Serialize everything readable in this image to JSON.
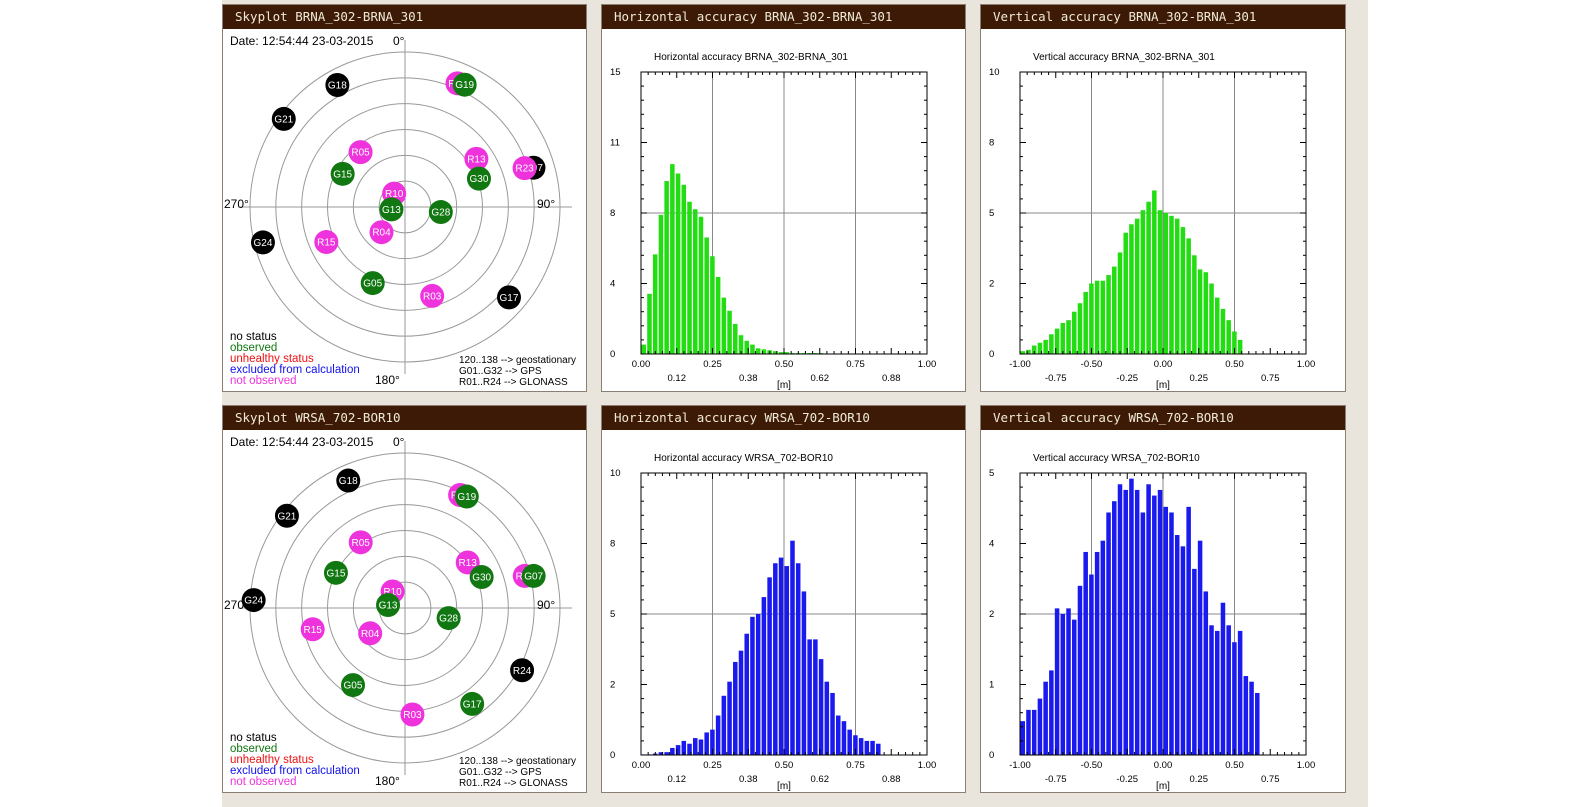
{
  "panels": [
    {
      "type": "skyplot",
      "title": "Skyplot BRNA_302-BRNA_301",
      "date_label": "Date: 12:54:44 23-03-2015",
      "compass": {
        "n": "0°",
        "e": "90°",
        "s": "180°",
        "w": "270°"
      },
      "satellites": [
        {
          "id": "G18",
          "status": "no status",
          "az": 331,
          "el": 9
        },
        {
          "id": "G21",
          "status": "no status",
          "az": 306,
          "el": 3
        },
        {
          "id": "G24",
          "status": "no status",
          "az": 256,
          "el": 5
        },
        {
          "id": "G07",
          "status": "no status",
          "az": 73,
          "el": 12
        },
        {
          "id": "G17",
          "status": "no status",
          "az": 131,
          "el": 10
        },
        {
          "id": "R20",
          "status": "not observed",
          "az": 23,
          "el": 12
        },
        {
          "id": "G19",
          "status": "observed",
          "az": 26,
          "el": 11
        },
        {
          "id": "R05",
          "status": "not observed",
          "az": 321,
          "el": 49
        },
        {
          "id": "R13",
          "status": "not observed",
          "az": 56,
          "el": 40
        },
        {
          "id": "G15",
          "status": "observed",
          "az": 298,
          "el": 49
        },
        {
          "id": "G30",
          "status": "observed",
          "az": 69,
          "el": 44
        },
        {
          "id": "R23",
          "status": "not observed",
          "az": 72,
          "el": 17
        },
        {
          "id": "R10",
          "status": "not observed",
          "az": 321,
          "el": 80
        },
        {
          "id": "G13",
          "status": "observed",
          "az": 260,
          "el": 82
        },
        {
          "id": "G28",
          "status": "observed",
          "az": 98,
          "el": 69
        },
        {
          "id": "R15",
          "status": "not observed",
          "az": 246,
          "el": 40
        },
        {
          "id": "R04",
          "status": "not observed",
          "az": 223,
          "el": 70
        },
        {
          "id": "G05",
          "status": "observed",
          "az": 203,
          "el": 42
        },
        {
          "id": "R03",
          "status": "not observed",
          "az": 163,
          "el": 36
        }
      ],
      "legend": [
        "no status",
        "observed",
        "unhealthy status",
        "excluded from calculation",
        "not observed"
      ],
      "info": [
        "120..138 --> geostationary",
        "G01..G32 --> GPS",
        "R01..R24 --> GLONASS"
      ]
    },
    {
      "type": "histogram",
      "title": "Horizontal accuracy BRNA_302-BRNA_301",
      "chart_data": {
        "type": "bar",
        "title": "Horizontal accuracy BRNA_302-BRNA_301",
        "xlabel": "[m]",
        "ylabel": "",
        "xlim": [
          0,
          1
        ],
        "ylim": [
          0,
          15
        ],
        "x_bottom_ticks": [
          "0.00",
          "0.12",
          "0.25",
          "0.38",
          "0.50",
          "0.62",
          "0.75",
          "0.88",
          "1.00"
        ],
        "y_ticks": [
          "0",
          "4",
          "8",
          "11",
          "15"
        ],
        "grid": true,
        "color": "#22dd11",
        "bin_width": 0.02,
        "values": [
          0.5,
          3.2,
          5.3,
          7.4,
          9.2,
          10.1,
          9.6,
          9.0,
          8.1,
          7.7,
          7.3,
          6.2,
          5.2,
          4.1,
          3.0,
          2.3,
          1.6,
          1.0,
          0.7,
          0.5,
          0.3,
          0.25,
          0.2,
          0.15,
          0.1,
          0.1,
          0.05,
          0.05,
          0.05,
          0.05,
          0.05,
          0.05,
          0.02,
          0.02,
          0.02,
          0.02,
          0.02,
          0.02,
          0.02,
          0.02,
          0.02,
          0.02,
          0.02,
          0.02,
          0.02,
          0.02,
          0.02,
          0.02,
          0.02,
          0.02
        ]
      }
    },
    {
      "type": "histogram",
      "title": "Vertical accuracy BRNA_302-BRNA_301",
      "chart_data": {
        "type": "bar",
        "title": "Vertical accuracy BRNA_302-BRNA_301",
        "xlabel": "[m]",
        "ylabel": "",
        "xlim": [
          -1,
          1
        ],
        "ylim": [
          0,
          10
        ],
        "x_bottom_ticks": [
          "-1.00",
          "-0.75",
          "-0.50",
          "-0.25",
          "0.00",
          "0.25",
          "0.50",
          "0.75",
          "1.00"
        ],
        "y_ticks": [
          "0",
          "2",
          "5",
          "8",
          "10"
        ],
        "grid": true,
        "color": "#22dd11",
        "bin_width": 0.04,
        "values": [
          0.1,
          0.15,
          0.3,
          0.4,
          0.5,
          0.7,
          0.9,
          1.1,
          1.2,
          1.5,
          1.8,
          2.2,
          2.5,
          2.6,
          2.6,
          2.8,
          3.1,
          3.6,
          4.3,
          4.6,
          4.8,
          5.1,
          5.4,
          5.8,
          5.1,
          5.0,
          4.9,
          4.8,
          4.5,
          4.1,
          3.5,
          3.0,
          2.9,
          2.5,
          2.0,
          1.6,
          1.2,
          0.8,
          0.5
        ]
      }
    },
    {
      "type": "skyplot",
      "title": "Skyplot WRSA_702-BOR10",
      "date_label": "Date: 12:54:44 23-03-2015",
      "compass": {
        "n": "0°",
        "e": "90°",
        "s": "180°",
        "w": "270°"
      },
      "satellites": [
        {
          "id": "G18",
          "status": "no status",
          "az": 336,
          "el": 9
        },
        {
          "id": "G21",
          "status": "no status",
          "az": 308,
          "el": 3
        },
        {
          "id": "G24",
          "status": "no status",
          "az": 273,
          "el": 2
        },
        {
          "id": "R24",
          "status": "no status",
          "az": 118,
          "el": 13
        },
        {
          "id": "R20",
          "status": "not observed",
          "az": 26,
          "el": 17
        },
        {
          "id": "G19",
          "status": "observed",
          "az": 29,
          "el": 16
        },
        {
          "id": "R05",
          "status": "not observed",
          "az": 326,
          "el": 44
        },
        {
          "id": "R13",
          "status": "not observed",
          "az": 54,
          "el": 45
        },
        {
          "id": "G15",
          "status": "observed",
          "az": 297,
          "el": 45
        },
        {
          "id": "G30",
          "status": "observed",
          "az": 68,
          "el": 42
        },
        {
          "id": "R02",
          "status": "not observed",
          "az": 75,
          "el": 18
        },
        {
          "id": "G07",
          "status": "observed",
          "az": 76,
          "el": 13
        },
        {
          "id": "R10",
          "status": "not observed",
          "az": 323,
          "el": 78
        },
        {
          "id": "G13",
          "status": "observed",
          "az": 280,
          "el": 80
        },
        {
          "id": "G28",
          "status": "observed",
          "az": 103,
          "el": 64
        },
        {
          "id": "R15",
          "status": "not observed",
          "az": 257,
          "el": 35
        },
        {
          "id": "R04",
          "status": "not observed",
          "az": 234,
          "el": 65
        },
        {
          "id": "G05",
          "status": "observed",
          "az": 214,
          "el": 36
        },
        {
          "id": "R03",
          "status": "not observed",
          "az": 176,
          "el": 28
        },
        {
          "id": "G17",
          "status": "observed",
          "az": 145,
          "el": 22
        }
      ],
      "legend": [
        "no status",
        "observed",
        "unhealthy status",
        "excluded from calculation",
        "not observed"
      ],
      "info": [
        "120..138 --> geostationary",
        "G01..G32 --> GPS",
        "R01..R24 --> GLONASS"
      ]
    },
    {
      "type": "histogram",
      "title": "Horizontal accuracy WRSA_702-BOR10",
      "chart_data": {
        "type": "bar",
        "title": "Horizontal accuracy WRSA_702-BOR10",
        "xlabel": "[m]",
        "ylabel": "",
        "xlim": [
          0,
          1
        ],
        "ylim": [
          0,
          10
        ],
        "x_bottom_ticks": [
          "0.00",
          "0.12",
          "0.25",
          "0.38",
          "0.50",
          "0.62",
          "0.75",
          "0.88",
          "1.00"
        ],
        "y_ticks": [
          "0",
          "2",
          "5",
          "8",
          "10"
        ],
        "grid": true,
        "color": "#1a1aee",
        "bin_width": 0.02,
        "values": [
          0.02,
          0.02,
          0.05,
          0.1,
          0.1,
          0.25,
          0.35,
          0.5,
          0.4,
          0.6,
          0.55,
          0.8,
          0.9,
          1.4,
          2.1,
          2.6,
          3.3,
          3.7,
          4.3,
          4.9,
          5.0,
          5.6,
          6.3,
          6.8,
          7.0,
          6.7,
          7.6,
          6.8,
          5.8,
          4.1,
          4.1,
          3.4,
          2.6,
          2.2,
          1.4,
          1.2,
          0.9,
          0.7,
          0.6,
          0.5,
          0.5,
          0.4
        ]
      }
    },
    {
      "type": "histogram",
      "title": "Vertical accuracy WRSA_702-BOR10",
      "chart_data": {
        "type": "bar",
        "title": "Vertical accuracy WRSA_702-BOR10",
        "xlabel": "[m]",
        "ylabel": "",
        "xlim": [
          -1,
          1
        ],
        "ylim": [
          0,
          5
        ],
        "x_bottom_ticks": [
          "-1.00",
          "-0.75",
          "-0.50",
          "-0.25",
          "0.00",
          "0.25",
          "0.50",
          "0.75",
          "1.00"
        ],
        "y_ticks": [
          "0",
          "1",
          "2",
          "4",
          "5"
        ],
        "grid": true,
        "color": "#1a1aee",
        "bin_width": 0.04,
        "values": [
          0.6,
          0.8,
          0.8,
          1.0,
          1.3,
          1.5,
          2.6,
          2.5,
          2.6,
          2.4,
          3.0,
          3.6,
          3.2,
          3.6,
          3.8,
          4.3,
          4.5,
          4.8,
          4.7,
          4.9,
          4.7,
          4.3,
          4.8,
          4.6,
          4.7,
          4.4,
          4.3,
          3.9,
          3.7,
          4.4,
          3.3,
          3.8,
          2.9,
          2.3,
          2.2,
          2.7,
          2.3,
          2.0,
          2.2,
          1.4,
          1.3,
          1.1
        ]
      }
    }
  ],
  "status_colors": {
    "no status": "#000000",
    "observed": "#117711",
    "unhealthy status": "#ee1111",
    "excluded from calculation": "#1111ee",
    "not observed": "#ee33dd"
  }
}
